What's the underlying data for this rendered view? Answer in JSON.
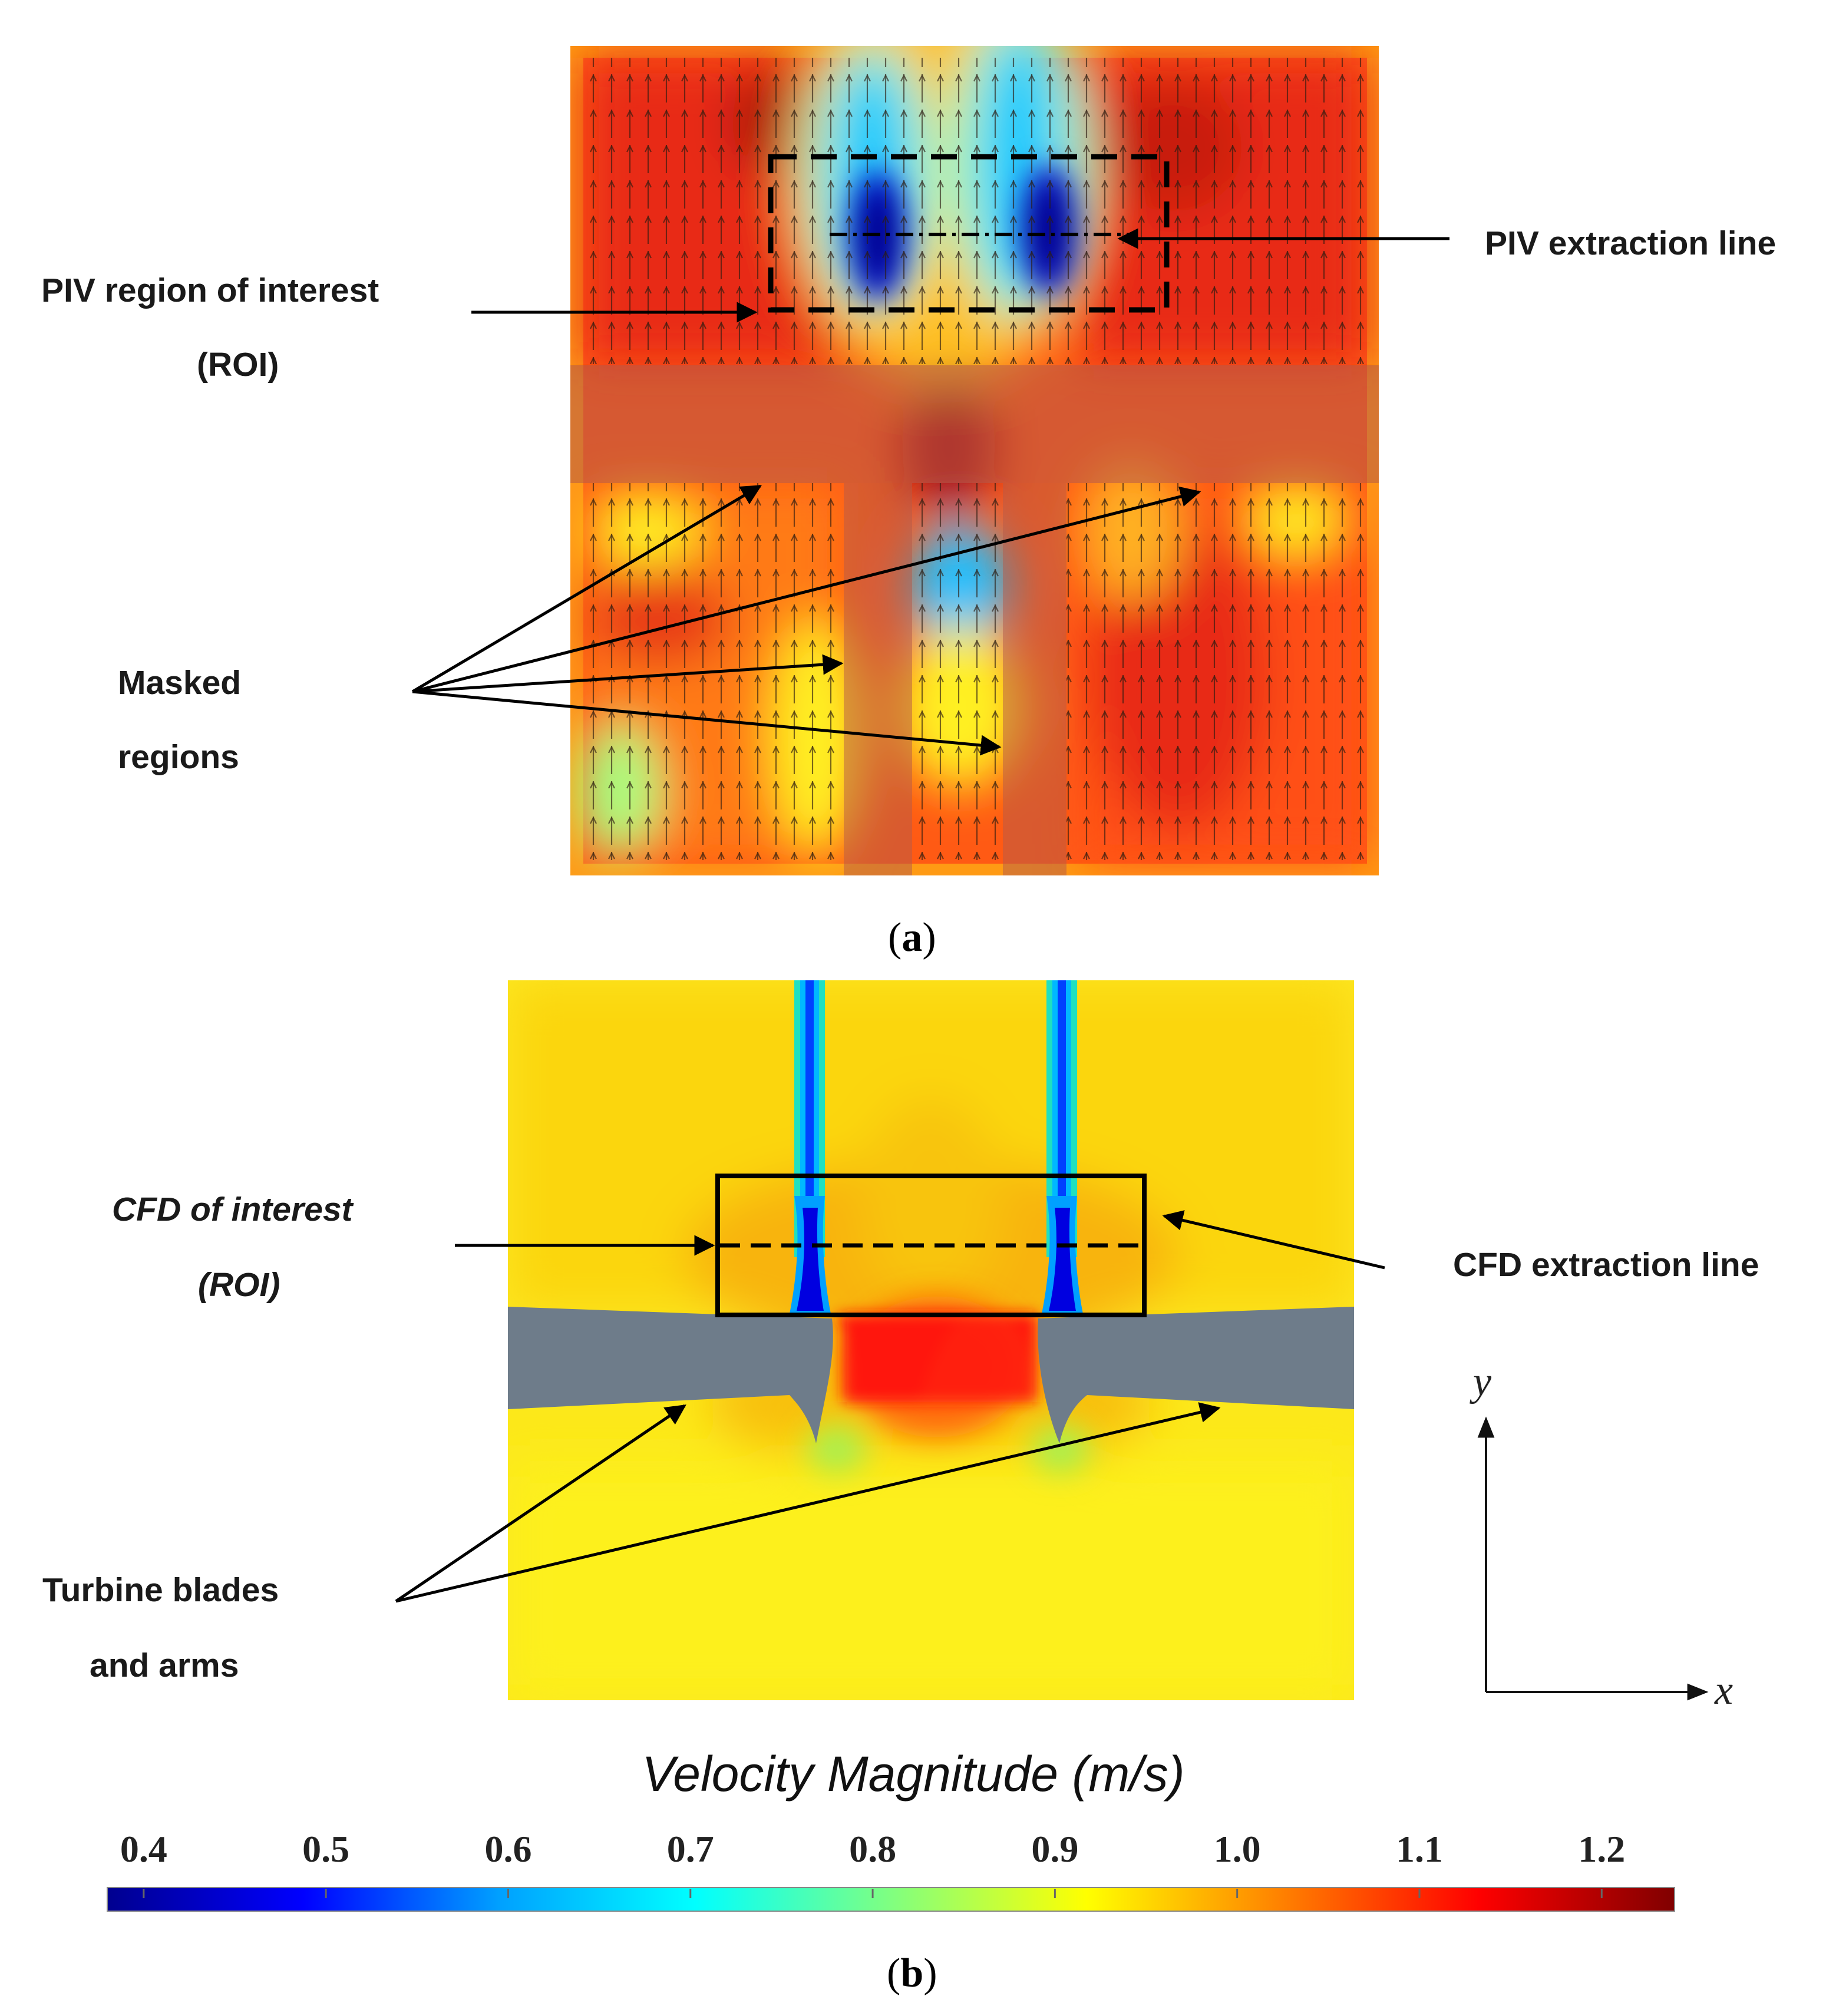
{
  "panel_a": {
    "caption_open": "(",
    "caption_letter": "a",
    "caption_close": ")",
    "roi_label_line1": "PIV region of interest",
    "roi_label_line2": "(ROI)",
    "extraction_label": "PIV extraction line",
    "masked_label_line1": "Masked",
    "masked_label_line2": "regions"
  },
  "panel_b": {
    "caption_open": "(",
    "caption_letter": "b",
    "caption_close": ")",
    "roi_label_line1": "CFD of interest",
    "roi_label_line2": "(ROI)",
    "extraction_label": "CFD extraction line",
    "blades_label_line1": "Turbine blades",
    "blades_label_line2": "and arms",
    "axis_x": "x",
    "axis_y": "y"
  },
  "colorbar": {
    "title": "Velocity Magnitude (m/s)",
    "ticks": [
      "0.4",
      "0.5",
      "0.6",
      "0.7",
      "0.8",
      "0.9",
      "1.0",
      "1.1",
      "1.2"
    ],
    "tick_values": [
      0.4,
      0.5,
      0.6,
      0.7,
      0.8,
      0.9,
      1.0,
      1.1,
      1.2
    ],
    "range": [
      0.38,
      1.24
    ],
    "colors": [
      "#00008f",
      "#0000ff",
      "#00a0ff",
      "#00ffff",
      "#80ff80",
      "#ffff00",
      "#ff8000",
      "#ff0000",
      "#800000"
    ]
  }
}
